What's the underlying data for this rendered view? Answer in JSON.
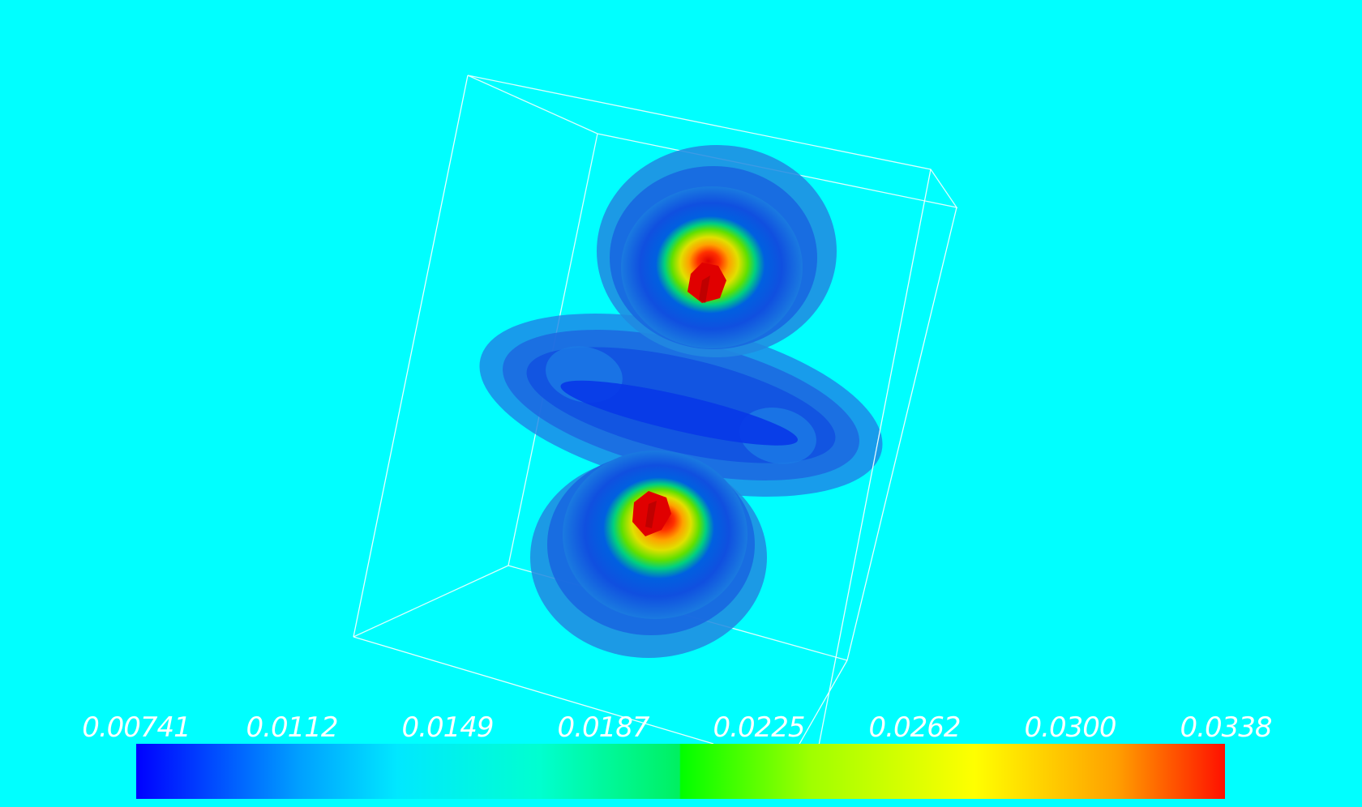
{
  "background_color": "#00ffff",
  "bounding_box_color": "#ffffff",
  "colormap": [
    "#0000ff",
    "#00bfff",
    "#00ffff",
    "#00ff7f",
    "#00ff00",
    "#ffff00",
    "#ff8000",
    "#ff0000"
  ],
  "colorbar": {
    "labels": [
      "0.00741",
      "0.0112",
      "0.0149",
      "0.0187",
      "0.0225",
      "0.0262",
      "0.0300",
      "0.0338"
    ]
  }
}
